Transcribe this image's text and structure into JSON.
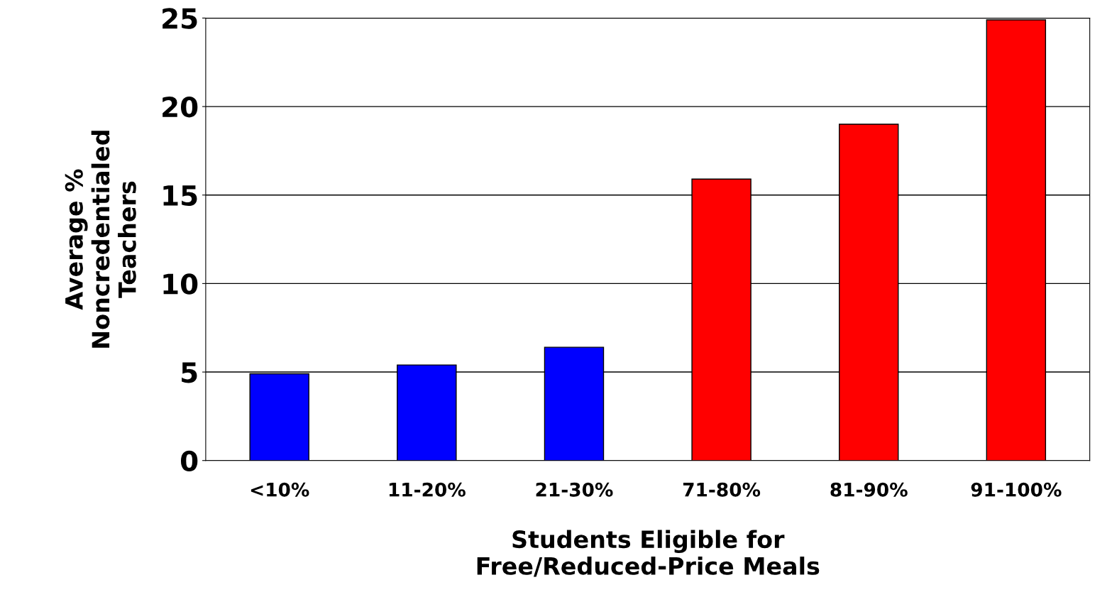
{
  "chart_data": {
    "type": "bar",
    "categories": [
      "<10%",
      "11-20%",
      "21-30%",
      "71-80%",
      "81-90%",
      "91-100%"
    ],
    "values": [
      4.9,
      5.4,
      6.4,
      15.9,
      19.0,
      24.9
    ],
    "colors": [
      "#0000ff",
      "#0000ff",
      "#0000ff",
      "#ff0000",
      "#ff0000",
      "#ff0000"
    ],
    "xlabel": "Students Eligible for\nFree/Reduced-Price Meals",
    "ylabel": "Average %\nNoncredentialed\nTeachers",
    "ylim": [
      0,
      25
    ],
    "yticks": [
      0,
      5,
      10,
      15,
      20,
      25
    ],
    "grid": "y"
  }
}
